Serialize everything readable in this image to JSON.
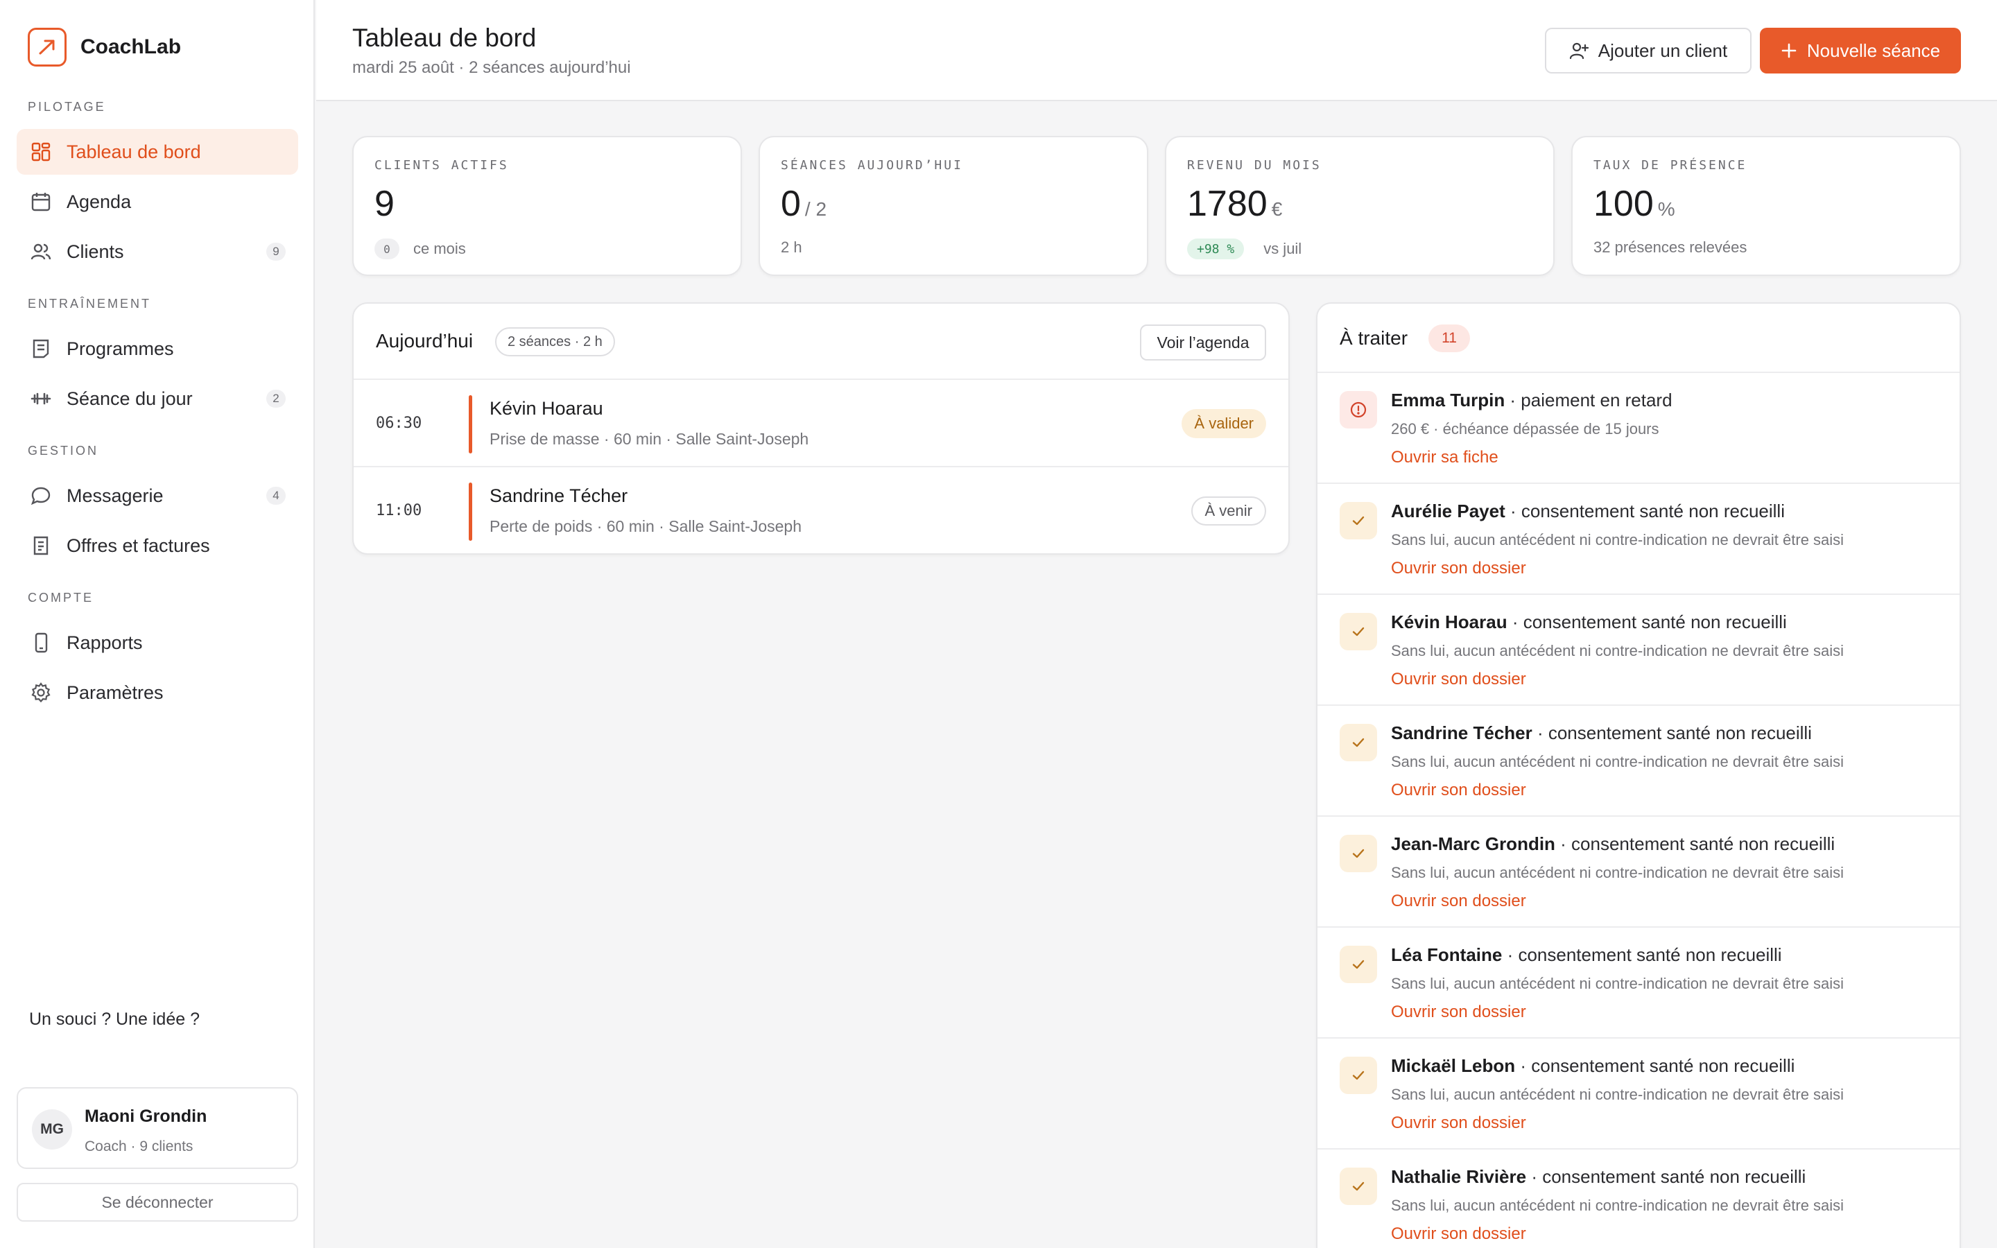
{
  "brand": {
    "name": "CoachLab"
  },
  "colors": {
    "accent": "#e85a2a",
    "accent_soft": "#fdeee6",
    "success": "#2e8a55",
    "warning": "#a8640e",
    "danger": "#d2432a"
  },
  "sidebar": {
    "sections": {
      "pilotage": "PILOTAGE",
      "entrainement": "ENTRAÎNEMENT",
      "gestion": "GESTION",
      "compte": "COMPTE"
    },
    "items": {
      "dashboard": {
        "label": "Tableau de bord",
        "icon": "dashboard-icon"
      },
      "agenda": {
        "label": "Agenda",
        "icon": "calendar-icon"
      },
      "clients": {
        "label": "Clients",
        "icon": "users-icon",
        "badge": "9"
      },
      "programmes": {
        "label": "Programmes",
        "icon": "document-icon"
      },
      "seance": {
        "label": "Séance du jour",
        "icon": "dumbbell-icon",
        "badge": "2"
      },
      "messagerie": {
        "label": "Messagerie",
        "icon": "chat-icon",
        "badge": "4"
      },
      "offres": {
        "label": "Offres et factures",
        "icon": "invoice-icon"
      },
      "rapports": {
        "label": "Rapports",
        "icon": "phone-icon"
      },
      "parametres": {
        "label": "Paramètres",
        "icon": "gear-icon"
      }
    },
    "feedback": "Un souci ? Une idée ?",
    "user": {
      "initials": "MG",
      "name": "Maoni Grondin",
      "subtitle": "Coach · 9 clients"
    },
    "logout": "Se déconnecter"
  },
  "header": {
    "title": "Tableau de bord",
    "subtitle": "mardi 25 août · 2 séances aujourd’hui",
    "add_client": "Ajouter un client",
    "new_session": "Nouvelle séance"
  },
  "stats": {
    "clients": {
      "label": "CLIENTS ACTIFS",
      "value": "9",
      "chip": "0",
      "foot": "ce mois"
    },
    "sessions": {
      "label": "SÉANCES AUJOURD’HUI",
      "value": "0",
      "unit": "/ 2",
      "foot": "2 h"
    },
    "revenue": {
      "label": "REVENU DU MOIS",
      "value": "1780",
      "unit": "€",
      "chip": "+98 %",
      "foot": "vs juil"
    },
    "attendance": {
      "label": "TAUX DE PRÉSENCE",
      "value": "100",
      "unit": "%",
      "foot": "32 présences relevées"
    }
  },
  "today": {
    "title": "Aujourd’hui",
    "summary": "2 séances · 2 h",
    "agenda_button": "Voir l’agenda",
    "sessions": [
      {
        "time": "06:30",
        "client": "Kévin Hoarau",
        "details": "Prise de masse · 60 min · Salle Saint-Joseph",
        "status": "À valider"
      },
      {
        "time": "11:00",
        "client": "Sandrine Técher",
        "details": "Perte de poids · 60 min · Salle Saint-Joseph",
        "status": "À venir"
      }
    ]
  },
  "todo": {
    "title": "À traiter",
    "count": "11",
    "items": [
      {
        "who": "Emma Turpin",
        "what": " · paiement en retard",
        "detail": "260 € · échéance dépassée de 15 jours",
        "link": "Ouvrir sa fiche",
        "icon": "alert-icon"
      },
      {
        "who": "Aurélie Payet",
        "what": " · consentement santé non recueilli",
        "detail": "Sans lui, aucun antécédent ni contre-indication ne devrait être saisi",
        "link": "Ouvrir son dossier",
        "icon": "check-icon"
      },
      {
        "who": "Kévin Hoarau",
        "what": " · consentement santé non recueilli",
        "detail": "Sans lui, aucun antécédent ni contre-indication ne devrait être saisi",
        "link": "Ouvrir son dossier",
        "icon": "check-icon"
      },
      {
        "who": "Sandrine Técher",
        "what": " · consentement santé non recueilli",
        "detail": "Sans lui, aucun antécédent ni contre-indication ne devrait être saisi",
        "link": "Ouvrir son dossier",
        "icon": "check-icon"
      },
      {
        "who": "Jean-Marc Grondin",
        "what": " · consentement santé non recueilli",
        "detail": "Sans lui, aucun antécédent ni contre-indication ne devrait être saisi",
        "link": "Ouvrir son dossier",
        "icon": "check-icon"
      },
      {
        "who": "Léa Fontaine",
        "what": " · consentement santé non recueilli",
        "detail": "Sans lui, aucun antécédent ni contre-indication ne devrait être saisi",
        "link": "Ouvrir son dossier",
        "icon": "check-icon"
      },
      {
        "who": "Mickaël Lebon",
        "what": " · consentement santé non recueilli",
        "detail": "Sans lui, aucun antécédent ni contre-indication ne devrait être saisi",
        "link": "Ouvrir son dossier",
        "icon": "check-icon"
      },
      {
        "who": "Nathalie Rivière",
        "what": " · consentement santé non recueilli",
        "detail": "Sans lui, aucun antécédent ni contre-indication ne devrait être saisi",
        "link": "Ouvrir son dossier",
        "icon": "check-icon"
      }
    ]
  }
}
